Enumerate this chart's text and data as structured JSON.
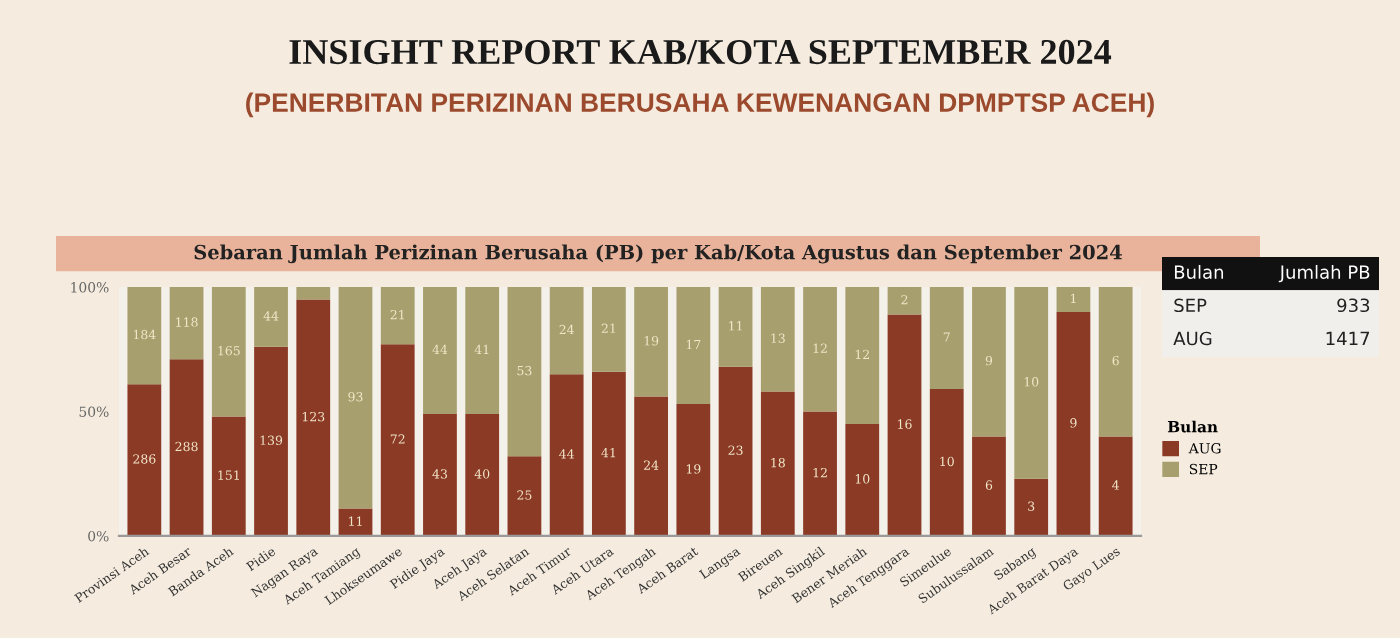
{
  "chart_data": {
    "type": "bar",
    "stacked": true,
    "title": "INSIGHT REPORT KAB/KOTA SEPTEMBER 2024",
    "subtitle": "(PENERBITAN PERIZINAN BERUSAHA KEWENANGAN DPMPTSP ACEH)",
    "categories": [
      "Provinsi Aceh",
      "Aceh Besar",
      "Banda Aceh",
      "Pidie",
      "Nagan Raya",
      "Aceh Tamiang",
      "Lhokseumawe",
      "Pidie Jaya",
      "Aceh Jaya",
      "Aceh Selatan",
      "Aceh Timur",
      "Aceh Utara",
      "Aceh Tengah",
      "Aceh Barat",
      "Langsa",
      "Bireuen",
      "Aceh Singkil",
      "Bener Meriah",
      "Aceh Tenggara",
      "Simeulue",
      "Subulussalam",
      "Sabang",
      "Aceh Barat Daya",
      "Gayo Lues"
    ],
    "series": [
      {
        "name": "AUG",
        "color": "#8b3a26",
        "values": [
          61,
          71,
          48,
          76,
          95,
          11,
          77,
          49,
          49,
          32,
          65,
          66,
          56,
          53,
          68,
          58,
          50,
          45,
          89,
          59,
          40,
          23,
          90,
          40
        ]
      },
      {
        "name": "SEP",
        "color": "#a89f6e",
        "values": [
          39,
          29,
          52,
          24,
          5,
          89,
          23,
          51,
          51,
          68,
          35,
          34,
          44,
          47,
          32,
          42,
          50,
          55,
          11,
          41,
          60,
          77,
          10,
          60
        ]
      }
    ],
    "ylim": [
      0,
      100
    ],
    "yticks": [
      {
        "value": 0,
        "label": "0%"
      },
      {
        "value": 50,
        "label": "50%"
      },
      {
        "value": 100,
        "label": "100%"
      }
    ],
    "legend": "right",
    "legend_title": "Bulan",
    "grid": false,
    "annotations": [
      "Sebaran Jumlah Perizinan Berusaha (PB) per Kab/Kota Agustus dan September 2024",
      "Bulan",
      "Jumlah PB",
      "SEP",
      "933",
      "AUG",
      "1417",
      "286",
      "288",
      "151",
      "139",
      "123",
      "11",
      "72",
      "43",
      "40",
      "25",
      "44",
      "41",
      "24",
      "19",
      "23",
      "18",
      "12",
      "10",
      "16",
      "10",
      "6",
      "3",
      "9",
      "4",
      "184",
      "118",
      "165",
      "44",
      "93",
      "21",
      "44",
      "41",
      "53",
      "24",
      "21",
      "19",
      "17",
      "11",
      "13",
      "12",
      "12",
      "2",
      "7",
      "9",
      "10",
      "1",
      "6"
    ]
  }
}
